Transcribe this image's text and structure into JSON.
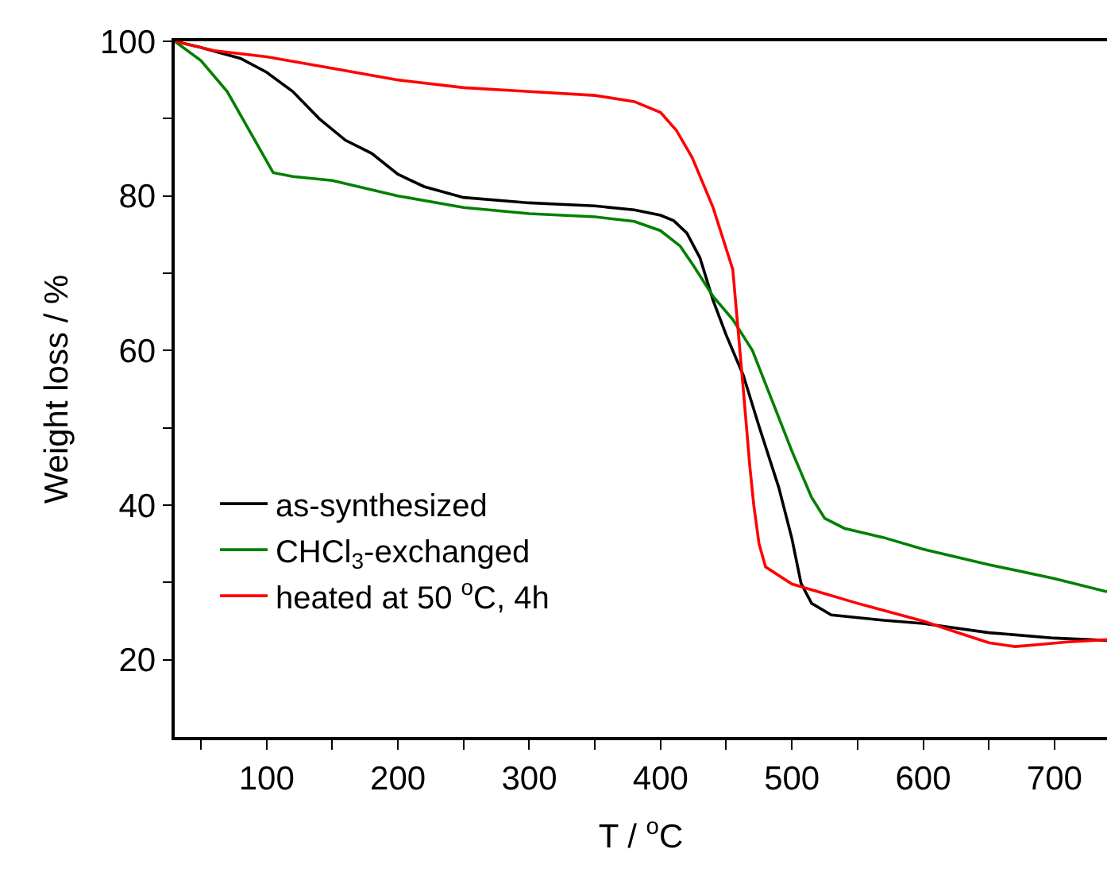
{
  "chart_data": {
    "type": "line",
    "xlabel": "T / $^{o}$C",
    "ylabel": "Weight loss / %",
    "xlim": [
      30,
      740
    ],
    "xticks": [
      {
        "value": 50,
        "label": null
      },
      100,
      {
        "value": 150,
        "label": null
      },
      200,
      {
        "value": 250,
        "label": null
      },
      300,
      {
        "value": 350,
        "label": null
      },
      400,
      {
        "value": 450,
        "label": null
      },
      500,
      {
        "value": 550,
        "label": null
      },
      600,
      {
        "value": 650,
        "label": null
      },
      700
    ],
    "ylim": [
      10,
      100
    ],
    "yticks": [
      20,
      {
        "value": 30,
        "label": null
      },
      40,
      {
        "value": 50,
        "label": null
      },
      60,
      {
        "value": 70,
        "label": null
      },
      80,
      {
        "value": 90,
        "label": null
      },
      100
    ],
    "legend": "left",
    "marker": "none",
    "line_style": "solid",
    "series": [
      {
        "name": "as-synthesized",
        "color": "#000000",
        "x": [
          30,
          50,
          80,
          100,
          120,
          140,
          160,
          180,
          200,
          220,
          250,
          300,
          350,
          380,
          400,
          410,
          420,
          430,
          440,
          450,
          463,
          475,
          490,
          500,
          507,
          515,
          530,
          570,
          600,
          650,
          700,
          740
        ],
        "values": [
          100,
          99.2,
          97.8,
          96,
          93.5,
          90,
          87.2,
          85.5,
          82.8,
          81.2,
          79.8,
          79.1,
          78.7,
          78.2,
          77.5,
          76.8,
          75.2,
          72,
          66.5,
          62,
          56.8,
          50.2,
          42.3,
          35.7,
          29.9,
          27.3,
          25.8,
          25.1,
          24.7,
          23.5,
          22.8,
          22.5
        ]
      },
      {
        "name": "CHCl$_{3}$-exchanged",
        "color": "#008000",
        "x": [
          30,
          50,
          70,
          90,
          105,
          120,
          150,
          200,
          250,
          300,
          350,
          380,
          400,
          415,
          425,
          440,
          455,
          470,
          485,
          500,
          515,
          525,
          540,
          570,
          600,
          650,
          700,
          740
        ],
        "values": [
          100,
          97.5,
          93.5,
          87.5,
          83,
          82.5,
          82,
          80,
          78.5,
          77.7,
          77.3,
          76.7,
          75.5,
          73.5,
          71,
          67,
          64,
          60,
          53.5,
          47,
          41,
          38.3,
          37,
          35.8,
          34.3,
          32.3,
          30.5,
          28.8
        ]
      },
      {
        "name": "heated at 50 $^{o}$C, 4h",
        "color": "#ff0000",
        "x": [
          30,
          60,
          100,
          150,
          200,
          250,
          300,
          350,
          380,
          400,
          412,
          424,
          440,
          455,
          463,
          468,
          471,
          475,
          480,
          500,
          520,
          550,
          600,
          630,
          650,
          670,
          690,
          710,
          740
        ],
        "values": [
          100,
          98.8,
          98,
          96.5,
          95,
          94,
          93.5,
          93,
          92.2,
          90.8,
          88.5,
          85,
          78.5,
          70.5,
          55,
          45,
          40,
          35,
          32,
          29.8,
          28.8,
          27.3,
          25,
          23.3,
          22.2,
          21.7,
          22,
          22.3,
          22.6
        ]
      }
    ]
  }
}
